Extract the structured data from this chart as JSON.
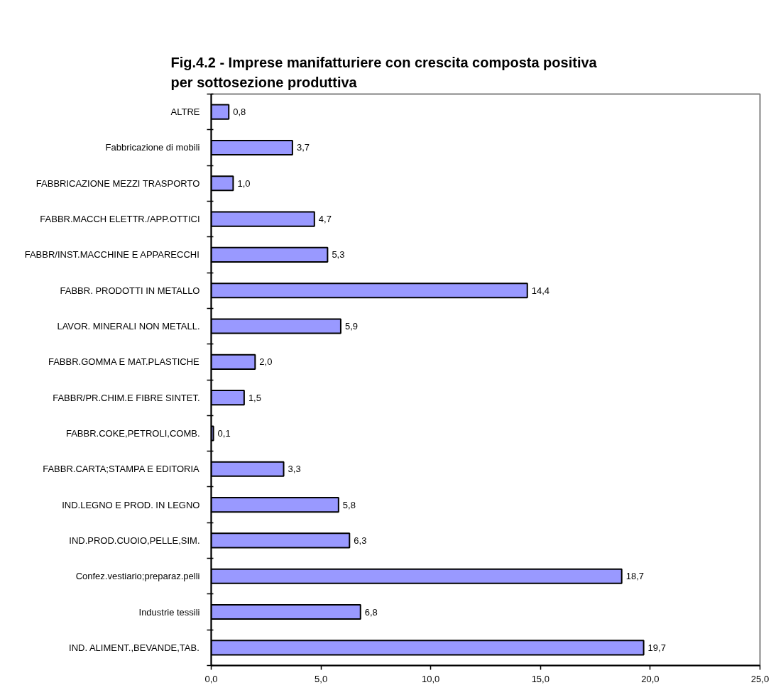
{
  "chart_data": {
    "type": "bar",
    "orientation": "horizontal",
    "title": "Fig.4.2 - Imprese  manifatturiere con crescita composta positiva\nper sottosezione produttiva",
    "categories": [
      "ALTRE",
      "Fabbricazione di mobili",
      "FABBRICAZIONE MEZZI TRASPORTO",
      "FABBR.MACCH ELETTR./APP.OTTICI",
      "FABBR/INST.MACCHINE E APPARECCHI",
      "FABBR. PRODOTTI IN METALLO",
      "LAVOR. MINERALI NON METALL.",
      "FABBR.GOMMA E MAT.PLASTICHE",
      "FABBR/PR.CHIM.E FIBRE SINTET.",
      "FABBR.COKE,PETROLI,COMB.",
      "FABBR.CARTA;STAMPA E EDITORIA",
      "IND.LEGNO E PROD. IN LEGNO",
      "IND.PROD.CUOIO,PELLE,SIM.",
      "Confez.vestiario;preparaz.pelli",
      "Industrie tessili",
      "IND. ALIMENT.,BEVANDE,TAB."
    ],
    "values": [
      0.8,
      3.7,
      1.0,
      4.7,
      5.3,
      14.4,
      5.9,
      2.0,
      1.5,
      0.1,
      3.3,
      5.8,
      6.3,
      18.7,
      6.8,
      19.7
    ],
    "value_labels": [
      "0,8",
      "3,7",
      "1,0",
      "4,7",
      "5,3",
      "14,4",
      "5,9",
      "2,0",
      "1,5",
      "0,1",
      "3,3",
      "5,8",
      "6,3",
      "18,7",
      "6,8",
      "19,7"
    ],
    "color": "#9999ff",
    "xlim": [
      0,
      25
    ],
    "xticks": [
      {
        "value": 0,
        "label": "0,0"
      },
      {
        "value": 5,
        "label": "5,0"
      },
      {
        "value": 10,
        "label": "10,0"
      },
      {
        "value": 15,
        "label": "15,0"
      },
      {
        "value": 20,
        "label": "20,0"
      },
      {
        "value": 25,
        "label": "25,0"
      }
    ]
  }
}
